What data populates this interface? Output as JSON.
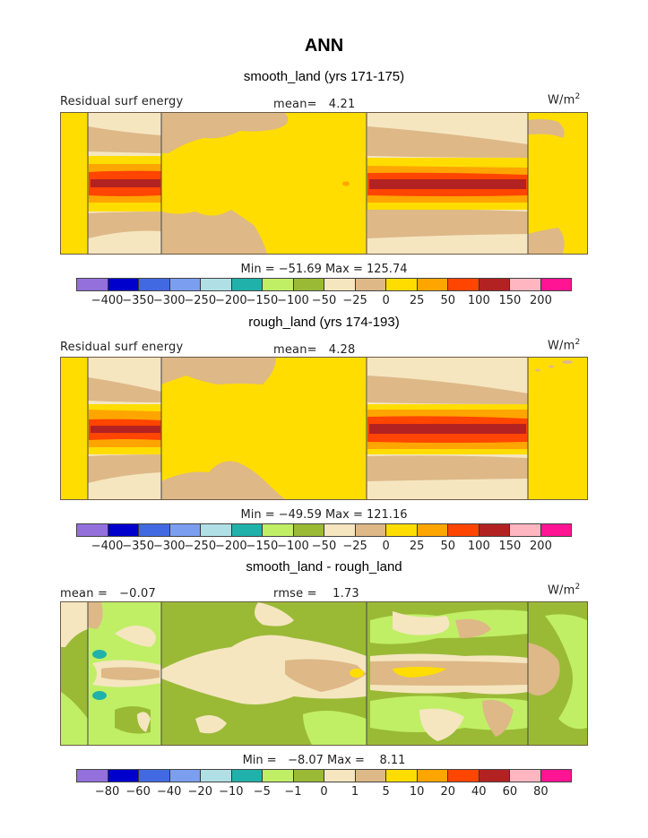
{
  "page_title": "ANN",
  "colors": {
    "palette": [
      "#9370db",
      "#0000cd",
      "#4169e1",
      "#7b9ef0",
      "#b0e0e6",
      "#20b2aa",
      "#c0ef66",
      "#9aba36",
      "#f5e6c0",
      "#deb887",
      "#ffdd00",
      "#ffa500",
      "#ff4500",
      "#b22222",
      "#ffb6c1",
      "#ff1493"
    ],
    "frame_border": "#6a5a45"
  },
  "chart_data": [
    {
      "type": "heatmap",
      "title": "smooth_land (yrs 171-175)",
      "variable_label": "Residual surf energy",
      "units_label": "W/m",
      "units_sup": "2",
      "stat_label": "mean=   4.21",
      "mean": 4.21,
      "min": -51.69,
      "max": 125.74,
      "minmax_label": "Min = −51.69 Max = 125.74",
      "colorbar_levels": [
        "−400",
        "−350",
        "−300",
        "−250",
        "−200",
        "−150",
        "−100",
        "−50",
        "−25",
        "0",
        "25",
        "50",
        "100",
        "150",
        "200"
      ]
    },
    {
      "type": "heatmap",
      "title": "rough_land (yrs 174-193)",
      "variable_label": "Residual surf energy",
      "units_label": "W/m",
      "units_sup": "2",
      "stat_label": "mean=   4.28",
      "mean": 4.28,
      "min": -49.59,
      "max": 121.16,
      "minmax_label": "Min = −49.59 Max = 121.16",
      "colorbar_levels": [
        "−400",
        "−350",
        "−300",
        "−250",
        "−200",
        "−150",
        "−100",
        "−50",
        "−25",
        "0",
        "25",
        "50",
        "100",
        "150",
        "200"
      ]
    },
    {
      "type": "heatmap",
      "title": "smooth_land - rough_land",
      "variable_label": "mean =   −0.07",
      "units_label": "W/m",
      "units_sup": "2",
      "stat_label": "rmse =    1.73",
      "mean": -0.07,
      "rmse": 1.73,
      "min": -8.07,
      "max": 8.11,
      "minmax_label": "Min =   −8.07 Max =    8.11",
      "colorbar_levels": [
        "−80",
        "−60",
        "−40",
        "−20",
        "−10",
        "−5",
        "−1",
        "0",
        "1",
        "5",
        "10",
        "20",
        "40",
        "60",
        "80"
      ]
    }
  ]
}
